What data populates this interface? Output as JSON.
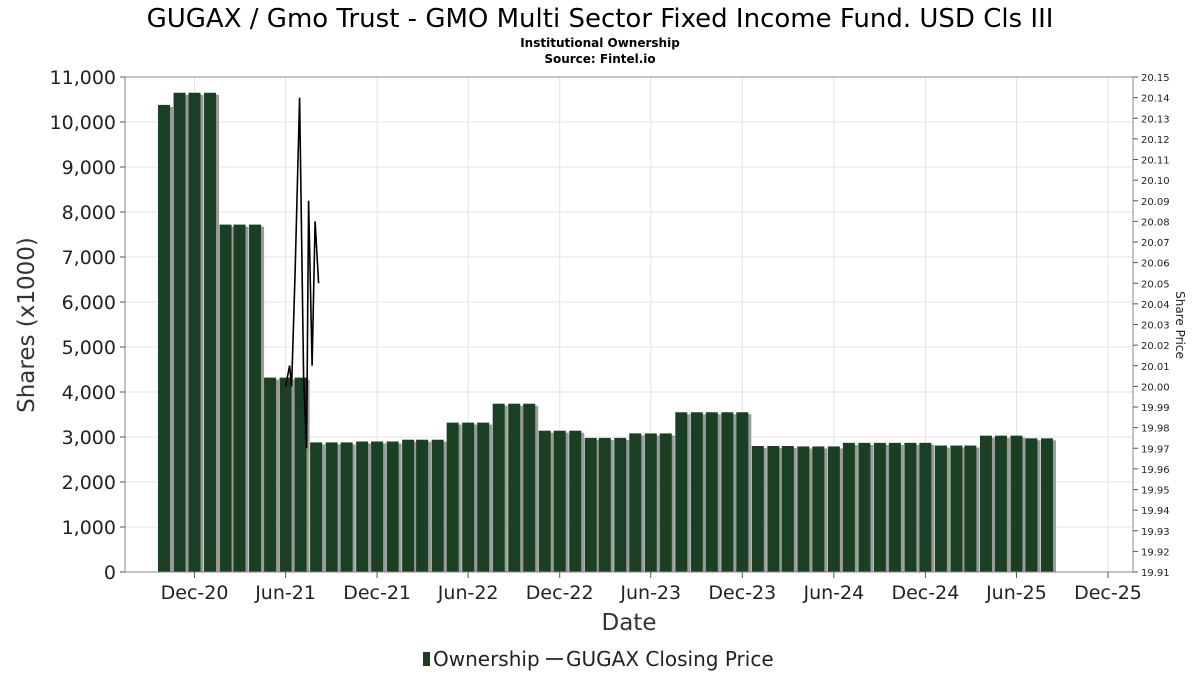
{
  "title": "GUGAX / Gmo Trust - GMO Multi Sector Fixed Income Fund. USD Cls III",
  "subtitle_1": "Institutional Ownership",
  "subtitle_2": "Source: Fintel.io",
  "colors": {
    "bar": "#1a3f22",
    "bar_shadow": "#9a9a9a",
    "line": "#000000",
    "grid": "#e3e3e3"
  },
  "chart_data": {
    "type": "bar",
    "xlabel": "Date",
    "ylabel": "Shares (x1000)",
    "y2label": "Share Price",
    "ylim": [
      0,
      11000
    ],
    "y2lim": [
      19.91,
      20.15
    ],
    "grid": true,
    "legend_position": "bottom",
    "x_ticks": [
      "Dec-20",
      "Jun-21",
      "Dec-21",
      "Jun-22",
      "Dec-22",
      "Jun-23",
      "Dec-23",
      "Jun-24",
      "Dec-24",
      "Jun-25",
      "Dec-25"
    ],
    "y_ticks": [
      "0",
      "1,000",
      "2,000",
      "3,000",
      "4,000",
      "5,000",
      "6,000",
      "7,000",
      "8,000",
      "9,000",
      "10,000",
      "11,000"
    ],
    "y2_ticks": [
      "19.91",
      "19.92",
      "19.93",
      "19.94",
      "19.95",
      "19.96",
      "19.97",
      "19.98",
      "19.99",
      "20.00",
      "20.01",
      "20.02",
      "20.03",
      "20.04",
      "20.05",
      "20.06",
      "20.07",
      "20.08",
      "20.09",
      "20.10",
      "20.11",
      "20.12",
      "20.13",
      "20.14",
      "20.15"
    ],
    "series": [
      {
        "name": "Ownership",
        "type": "bar",
        "dates": [
          "2020-10-01",
          "2020-11-01",
          "2020-12-01",
          "2021-01-01",
          "2021-02-01",
          "2021-03-01",
          "2021-04-01",
          "2021-05-01",
          "2021-06-01",
          "2021-07-01",
          "2021-08-01",
          "2021-09-01",
          "2021-10-01",
          "2021-11-01",
          "2021-12-01",
          "2022-01-01",
          "2022-02-01",
          "2022-03-01",
          "2022-04-01",
          "2022-05-01",
          "2022-06-01",
          "2022-07-01",
          "2022-08-01",
          "2022-09-01",
          "2022-10-01",
          "2022-11-01",
          "2022-12-01",
          "2023-01-01",
          "2023-02-01",
          "2023-03-01",
          "2023-04-01",
          "2023-05-01",
          "2023-06-01",
          "2023-07-01",
          "2023-08-01",
          "2023-09-01",
          "2023-10-01",
          "2023-11-01",
          "2023-12-01",
          "2024-01-01",
          "2024-02-01",
          "2024-03-01",
          "2024-04-01",
          "2024-05-01",
          "2024-06-01",
          "2024-07-01",
          "2024-08-01",
          "2024-09-01",
          "2024-10-01",
          "2024-11-01",
          "2024-12-01",
          "2025-01-01",
          "2025-02-01",
          "2025-03-01",
          "2025-04-01",
          "2025-05-01",
          "2025-06-01",
          "2025-07-01",
          "2025-08-01"
        ],
        "values": [
          10380,
          10650,
          10650,
          10650,
          7720,
          7720,
          7720,
          4320,
          4320,
          4320,
          2880,
          2880,
          2880,
          2900,
          2900,
          2900,
          2940,
          2940,
          2940,
          3320,
          3320,
          3320,
          3740,
          3740,
          3740,
          3140,
          3140,
          3140,
          2980,
          2980,
          2980,
          3080,
          3080,
          3080,
          3550,
          3550,
          3550,
          3550,
          3550,
          2800,
          2800,
          2800,
          2790,
          2790,
          2790,
          2870,
          2870,
          2870,
          2870,
          2870,
          2870,
          2810,
          2810,
          2810,
          3030,
          3030,
          3030,
          2970,
          2970
        ]
      },
      {
        "name": "GUGAX Closing Price",
        "type": "line",
        "points": [
          {
            "date": "2021-06-01",
            "price": 20.0
          },
          {
            "date": "2021-06-09",
            "price": 20.01
          },
          {
            "date": "2021-06-13",
            "price": 20.0
          },
          {
            "date": "2021-06-20",
            "price": 20.055
          },
          {
            "date": "2021-06-29",
            "price": 20.14
          },
          {
            "date": "2021-07-07",
            "price": 20.005
          },
          {
            "date": "2021-07-13",
            "price": 19.97
          },
          {
            "date": "2021-07-17",
            "price": 20.09
          },
          {
            "date": "2021-07-24",
            "price": 20.01
          },
          {
            "date": "2021-07-30",
            "price": 20.08
          },
          {
            "date": "2021-08-06",
            "price": 20.05
          }
        ]
      }
    ]
  }
}
